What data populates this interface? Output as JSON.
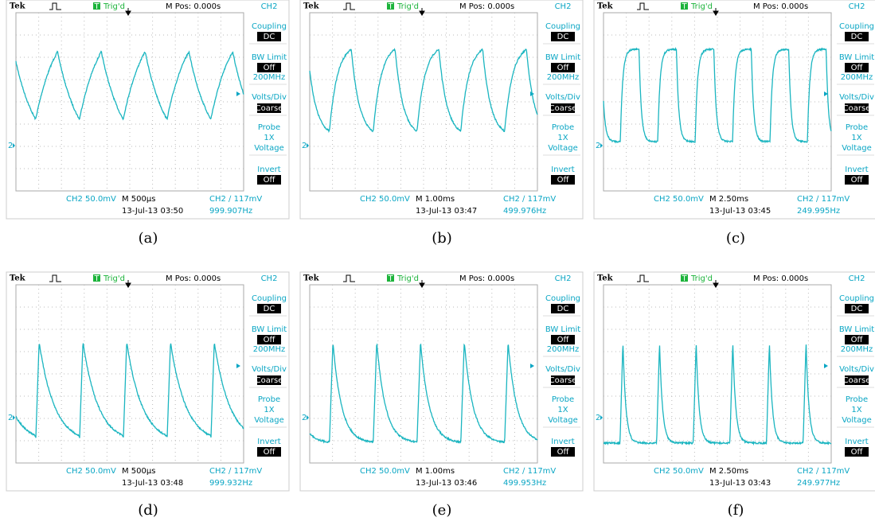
{
  "panels": [
    {
      "header": {
        "brand": "Tek",
        "trigger_icon": "T",
        "trigger_status": "Trig'd",
        "position": "M Pos: 0.000s",
        "channel": "CH2"
      },
      "menu": [
        {
          "label": "Coupling",
          "selected": "DC"
        },
        {
          "label": "BW Limit",
          "selected": "Off",
          "extra": [
            "200MHz"
          ]
        },
        {
          "label": "Volts/Div",
          "selected": "Coarse"
        },
        {
          "label": "Probe",
          "extra": [
            "1X",
            "Voltage"
          ]
        },
        {
          "label": "Invert",
          "selected": "Off"
        }
      ],
      "footer": {
        "scale": "CH2  50.0mV",
        "timebase": "M 500µs",
        "trigger": "CH2 ∕ 117mV",
        "date": "13-Jul-13 03:50",
        "frequency": "999.907Hz"
      },
      "caption": "(a)"
    },
    {
      "header": {
        "brand": "Tek",
        "trigger_icon": "T",
        "trigger_status": "Trig'd",
        "position": "M Pos: 0.000s",
        "channel": "CH2"
      },
      "menu": [
        {
          "label": "Coupling",
          "selected": "DC"
        },
        {
          "label": "BW Limit",
          "selected": "Off",
          "extra": [
            "200MHz"
          ]
        },
        {
          "label": "Volts/Div",
          "selected": "Coarse"
        },
        {
          "label": "Probe",
          "extra": [
            "1X",
            "Voltage"
          ]
        },
        {
          "label": "Invert",
          "selected": "Off"
        }
      ],
      "footer": {
        "scale": "CH2  50.0mV",
        "timebase": "M 1.00ms",
        "trigger": "CH2 ∕ 117mV",
        "date": "13-Jul-13 03:47",
        "frequency": "499.976Hz"
      },
      "caption": "(b)"
    },
    {
      "header": {
        "brand": "Tek",
        "trigger_icon": "T",
        "trigger_status": "Trig'd",
        "position": "M Pos: 0.000s",
        "channel": "CH2"
      },
      "menu": [
        {
          "label": "Coupling",
          "selected": "DC"
        },
        {
          "label": "BW Limit",
          "selected": "Off",
          "extra": [
            "200MHz"
          ]
        },
        {
          "label": "Volts/Div",
          "selected": "Coarse"
        },
        {
          "label": "Probe",
          "extra": [
            "1X",
            "Voltage"
          ]
        },
        {
          "label": "Invert",
          "selected": "Off"
        }
      ],
      "footer": {
        "scale": "CH2  50.0mV",
        "timebase": "M 2.50ms",
        "trigger": "CH2 ∕ 117mV",
        "date": "13-Jul-13 03:45",
        "frequency": "249.995Hz"
      },
      "caption": "(c)"
    },
    {
      "header": {
        "brand": "Tek",
        "trigger_icon": "T",
        "trigger_status": "Trig'd",
        "position": "M Pos: 0.000s",
        "channel": "CH2"
      },
      "menu": [
        {
          "label": "Coupling",
          "selected": "DC"
        },
        {
          "label": "BW Limit",
          "selected": "Off",
          "extra": [
            "200MHz"
          ]
        },
        {
          "label": "Volts/Div",
          "selected": "Coarse"
        },
        {
          "label": "Probe",
          "extra": [
            "1X",
            "Voltage"
          ]
        },
        {
          "label": "Invert",
          "selected": "Off"
        }
      ],
      "footer": {
        "scale": "CH2  50.0mV",
        "timebase": "M 500µs",
        "trigger": "CH2 ∕ 117mV",
        "date": "13-Jul-13 03:48",
        "frequency": "999.932Hz"
      },
      "caption": "(d)"
    },
    {
      "header": {
        "brand": "Tek",
        "trigger_icon": "T",
        "trigger_status": "Trig'd",
        "position": "M Pos: 0.000s",
        "channel": "CH2"
      },
      "menu": [
        {
          "label": "Coupling",
          "selected": "DC"
        },
        {
          "label": "BW Limit",
          "selected": "Off",
          "extra": [
            "200MHz"
          ]
        },
        {
          "label": "Volts/Div",
          "selected": "Coarse"
        },
        {
          "label": "Probe",
          "extra": [
            "1X",
            "Voltage"
          ]
        },
        {
          "label": "Invert",
          "selected": "Off"
        }
      ],
      "footer": {
        "scale": "CH2  50.0mV",
        "timebase": "M 1.00ms",
        "trigger": "CH2 ∕ 117mV",
        "date": "13-Jul-13 03:46",
        "frequency": "499.953Hz"
      },
      "caption": "(e)"
    },
    {
      "header": {
        "brand": "Tek",
        "trigger_icon": "T",
        "trigger_status": "Trig'd",
        "position": "M Pos: 0.000s",
        "channel": "CH2"
      },
      "menu": [
        {
          "label": "Coupling",
          "selected": "DC"
        },
        {
          "label": "BW Limit",
          "selected": "Off",
          "extra": [
            "200MHz"
          ]
        },
        {
          "label": "Volts/Div",
          "selected": "Coarse"
        },
        {
          "label": "Probe",
          "extra": [
            "1X",
            "Voltage"
          ]
        },
        {
          "label": "Invert",
          "selected": "Off"
        }
      ],
      "footer": {
        "scale": "CH2  50.0mV",
        "timebase": "M 2.50ms",
        "trigger": "CH2 ∕ 117mV",
        "date": "13-Jul-13 03:43",
        "frequency": "249.977Hz"
      },
      "caption": "(f)"
    }
  ]
}
